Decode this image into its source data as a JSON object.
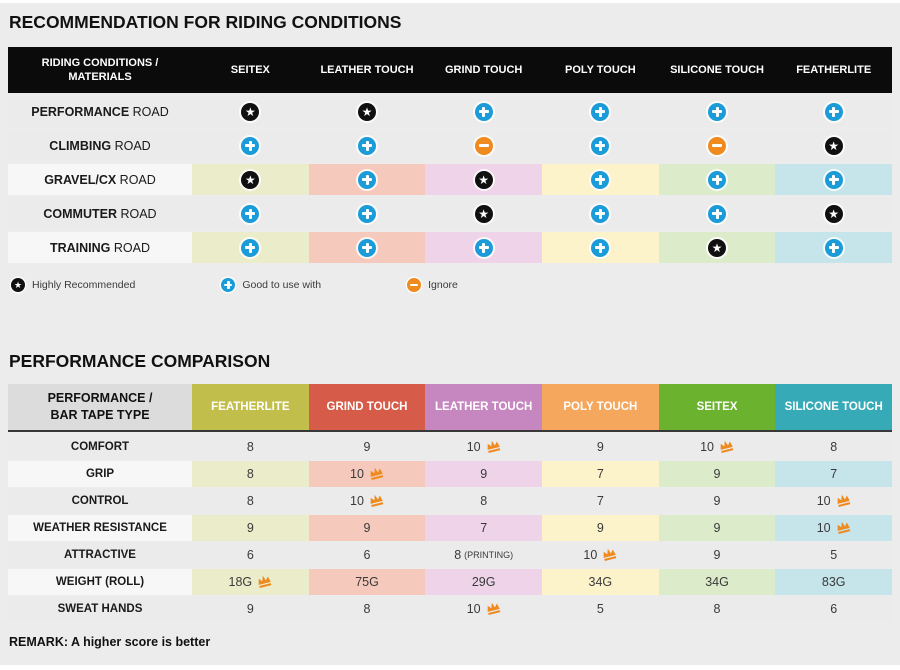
{
  "colors": {
    "page_bg": "#ececec",
    "table1_header_bg": "#0b0b0b",
    "star_icon": "#101010",
    "plus_icon": "#1b9bd7",
    "minus_icon": "#ee8a1e",
    "crown_icon": "#ee8a1e",
    "column_colors": [
      "#c2be4b",
      "#d75b49",
      "#c687c1",
      "#f4a75d",
      "#6bb32f",
      "#36abb7"
    ],
    "pale_column_colors": [
      "#ebecca",
      "#f5cabc",
      "#eed3e9",
      "#fdf3cb",
      "#dcecca",
      "#c5e5ea"
    ]
  },
  "riding_table": {
    "title": "RECOMMENDATION FOR RIDING CONDITIONS",
    "header_label": "RIDING CONDITIONS /\nMATERIALS",
    "columns": [
      "SEITEX",
      "LEATHER TOUCH",
      "GRIND TOUCH",
      "POLY TOUCH",
      "SILICONE TOUCH",
      "FEATHERLITE"
    ],
    "rows": [
      {
        "label_bold": "PERFORMANCE",
        "label_rest": " ROAD",
        "colored": false,
        "cells": [
          "star",
          "star",
          "plus",
          "plus",
          "plus",
          "plus"
        ]
      },
      {
        "label_bold": "CLIMBING",
        "label_rest": " ROAD",
        "colored": false,
        "cells": [
          "plus",
          "plus",
          "minus",
          "plus",
          "minus",
          "star"
        ]
      },
      {
        "label_bold": "GRAVEL/CX",
        "label_rest": " ROAD",
        "colored": true,
        "cells": [
          "star",
          "plus",
          "star",
          "plus",
          "plus",
          "plus"
        ]
      },
      {
        "label_bold": "COMMUTER",
        "label_rest": " ROAD",
        "colored": false,
        "cells": [
          "plus",
          "plus",
          "star",
          "plus",
          "plus",
          "star"
        ]
      },
      {
        "label_bold": "TRAINING",
        "label_rest": " ROAD",
        "colored": true,
        "cells": [
          "plus",
          "plus",
          "plus",
          "plus",
          "star",
          "plus"
        ]
      }
    ],
    "legend": [
      {
        "icon": "star",
        "label": "Highly Recommended"
      },
      {
        "icon": "plus",
        "label": "Good to use with"
      },
      {
        "icon": "minus",
        "label": "Ignore"
      }
    ]
  },
  "performance_table": {
    "title": "PERFORMANCE COMPARISON",
    "header_label": "PERFORMANCE /\nBAR TAPE TYPE",
    "columns": [
      "FEATHERLITE",
      "GRIND TOUCH",
      "LEATHER TOUCH",
      "POLY TOUCH",
      "SEITEX",
      "SILICONE TOUCH"
    ],
    "rows": [
      {
        "label": "COMFORT",
        "colored": false,
        "cells": [
          {
            "value": "8"
          },
          {
            "value": "9"
          },
          {
            "value": "10",
            "crown": true
          },
          {
            "value": "9"
          },
          {
            "value": "10",
            "crown": true
          },
          {
            "value": "8"
          }
        ]
      },
      {
        "label": "GRIP",
        "colored": true,
        "cells": [
          {
            "value": "8"
          },
          {
            "value": "10",
            "crown": true
          },
          {
            "value": "9"
          },
          {
            "value": "7"
          },
          {
            "value": "9"
          },
          {
            "value": "7"
          }
        ]
      },
      {
        "label": "CONTROL",
        "colored": false,
        "cells": [
          {
            "value": "8"
          },
          {
            "value": "10",
            "crown": true
          },
          {
            "value": "8"
          },
          {
            "value": "7"
          },
          {
            "value": "9"
          },
          {
            "value": "10",
            "crown": true
          }
        ]
      },
      {
        "label": "WEATHER RESISTANCE",
        "colored": true,
        "cells": [
          {
            "value": "9"
          },
          {
            "value": "9"
          },
          {
            "value": "7"
          },
          {
            "value": "9"
          },
          {
            "value": "9"
          },
          {
            "value": "10",
            "crown": true
          }
        ]
      },
      {
        "label": "ATTRACTIVE",
        "colored": false,
        "cells": [
          {
            "value": "6"
          },
          {
            "value": "6"
          },
          {
            "value": "8",
            "suffix": "(PRINTING)"
          },
          {
            "value": "10",
            "crown": true
          },
          {
            "value": "9"
          },
          {
            "value": "5"
          }
        ]
      },
      {
        "label": "WEIGHT (ROLL)",
        "colored": true,
        "cells": [
          {
            "value": "18G",
            "crown": true
          },
          {
            "value": "75G"
          },
          {
            "value": "29G"
          },
          {
            "value": "34G"
          },
          {
            "value": "34G"
          },
          {
            "value": "83G"
          }
        ]
      },
      {
        "label": "SWEAT HANDS",
        "colored": false,
        "cells": [
          {
            "value": "9"
          },
          {
            "value": "8"
          },
          {
            "value": "10",
            "crown": true
          },
          {
            "value": "5"
          },
          {
            "value": "8"
          },
          {
            "value": "6"
          }
        ]
      }
    ],
    "remark": "REMARK: A higher score is better"
  }
}
